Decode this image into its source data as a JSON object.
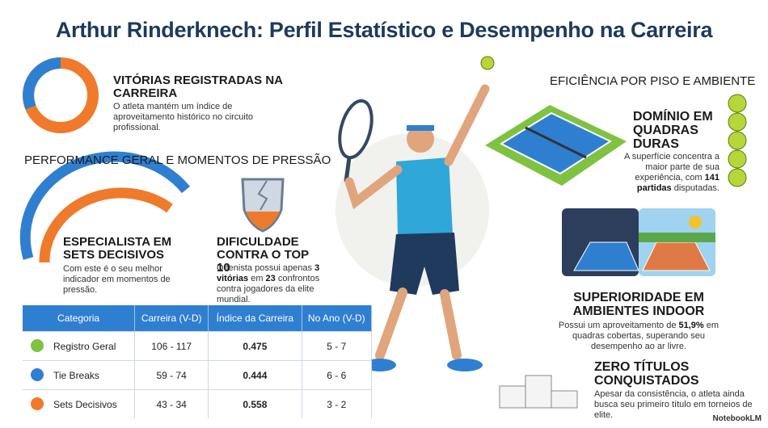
{
  "header": {
    "title": "Arthur Rinderknech: Perfil Estatístico e Desempenho na Carreira"
  },
  "wins": {
    "heading": "VITÓRIAS REGISTRADAS NA CARREIRA",
    "body": [
      "O atleta mantém um índice de aproveitamento histórico no circuito profissional."
    ]
  },
  "performance": {
    "heading": "PERFORMANCE GERAL E MOMENTOS DE PRESSÃO"
  },
  "decisive_sets": {
    "heading": "ESPECIALISTA EM SETS DECISIVOS",
    "body": [
      "Com este é o seu melhor indicador em momentos de pressão."
    ]
  },
  "top10": {
    "heading": "DIFICULDADE CONTRA O TOP 10",
    "body": [
      "O tenista possui apenas ",
      "3 vitórias",
      " em ",
      "23",
      " confrontos contra jogadores da elite mundial."
    ]
  },
  "table": {
    "header": [
      "Categoria",
      "Carreira (V-D)",
      "Índice da Carreira",
      "No Ano (V-D)"
    ],
    "rows": [
      [
        "Registro Geral",
        "106 - 117",
        "0.475",
        "5 - 7"
      ],
      [
        "Tie Breaks",
        "59 - 74",
        "0.444",
        "6 - 6"
      ],
      [
        "Sets Decisivos",
        "43 - 34",
        "0.558",
        "3 - 2"
      ]
    ]
  },
  "surface": {
    "heading": "EFICIÊNCIA POR PISO E AMBIENTE"
  },
  "hard_courts": {
    "heading": "DOMÍNIO EM QUADRAS DURAS",
    "body": [
      "A superfície concentra a maior parte de sua experiência, com ",
      "141 partidas",
      " disputadas."
    ]
  },
  "indoor": {
    "heading": "SUPERIORIDADE EM AMBIENTES INDOOR",
    "body": [
      "Possui um aproveitamento de ",
      "51,9%",
      " em quadras cobertas, superando seu desempenho ao ar livre."
    ]
  },
  "titles": {
    "heading": "ZERO TÍTULOS CONQUISTADOS",
    "body": [
      "Apesar da consistência, o atleta ainda busca seu primeiro título em torneios de elite."
    ]
  },
  "footer": {
    "watermark": "NotebookLM"
  }
}
